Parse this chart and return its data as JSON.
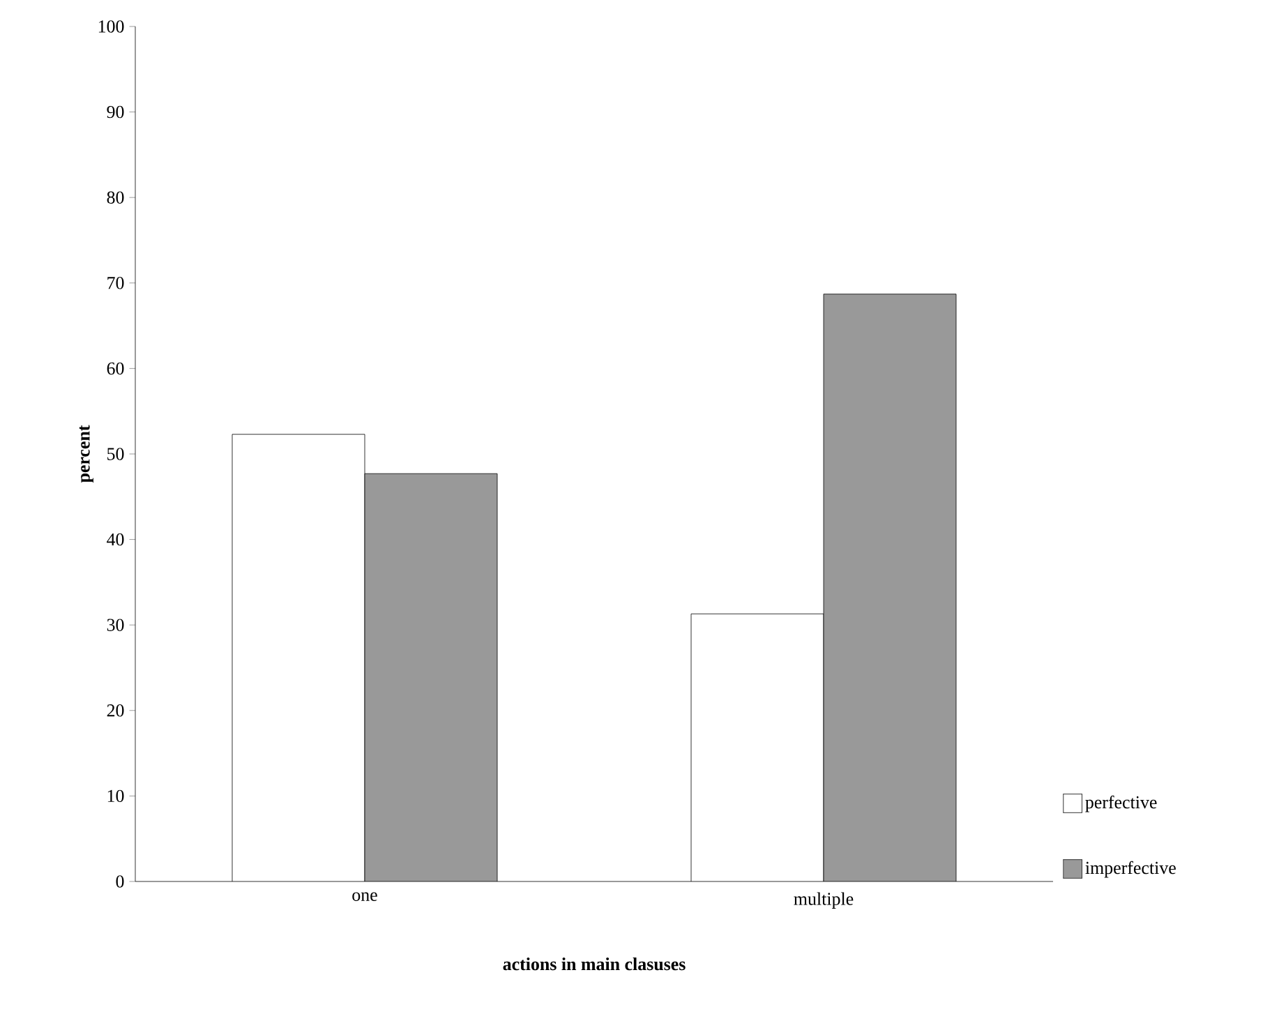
{
  "chart_data": {
    "type": "bar",
    "xlabel": "actions in main clasuses",
    "ylabel": "percent",
    "categories": [
      "one",
      "multiple"
    ],
    "series": [
      {
        "name": "perfective",
        "color": "#ffffff",
        "values": [
          52.3,
          31.3
        ]
      },
      {
        "name": "imperfective",
        "color": "#999999",
        "values": [
          47.7,
          68.7
        ]
      }
    ],
    "ylim": [
      0,
      100
    ],
    "yticks": [
      0,
      10,
      20,
      30,
      40,
      50,
      60,
      70,
      80,
      90,
      100
    ],
    "grid": false,
    "legend": "bottom right"
  }
}
